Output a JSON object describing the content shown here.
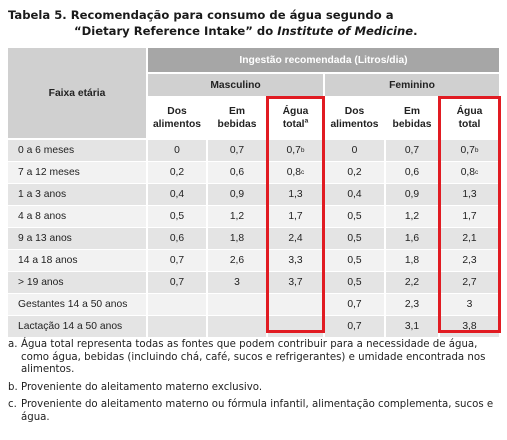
{
  "title": {
    "line1": "Tabela 5. Recomendação para consumo de água segundo a",
    "line2_pre": "“Dietary Reference Intake” do ",
    "line2_em": "Institute of Medicine",
    "line2_post": "."
  },
  "table": {
    "age_header": "Faixa etária",
    "intake_header": "Ingestão recomendada (Litros/dia)",
    "male_header": "Masculino",
    "female_header": "Feminino",
    "col_headers": {
      "food_l1": "Dos",
      "food_l2": "alimentos",
      "drink_l1": "Em",
      "drink_l2": "bebidas",
      "total_l1": "Água",
      "total_l2": "total",
      "total_male_sup": "a"
    },
    "rows": [
      {
        "label": "0 a 6 meses",
        "m_food": "0",
        "m_drink": "0,7",
        "m_total": "0,7",
        "m_sup": "b",
        "f_food": "0",
        "f_drink": "0,7",
        "f_total": "0,7",
        "f_sup": "b"
      },
      {
        "label": "7 a 12 meses",
        "m_food": "0,2",
        "m_drink": "0,6",
        "m_total": "0,8",
        "m_sup": "c",
        "f_food": "0,2",
        "f_drink": "0,6",
        "f_total": "0,8",
        "f_sup": "c"
      },
      {
        "label": "1 a 3 anos",
        "m_food": "0,4",
        "m_drink": "0,9",
        "m_total": "1,3",
        "m_sup": "",
        "f_food": "0,4",
        "f_drink": "0,9",
        "f_total": "1,3",
        "f_sup": ""
      },
      {
        "label": "4 a 8 anos",
        "m_food": "0,5",
        "m_drink": "1,2",
        "m_total": "1,7",
        "m_sup": "",
        "f_food": "0,5",
        "f_drink": "1,2",
        "f_total": "1,7",
        "f_sup": ""
      },
      {
        "label": "9 a 13 anos",
        "m_food": "0,6",
        "m_drink": "1,8",
        "m_total": "2,4",
        "m_sup": "",
        "f_food": "0,5",
        "f_drink": "1,6",
        "f_total": "2,1",
        "f_sup": ""
      },
      {
        "label": "14 a 18 anos",
        "m_food": "0,7",
        "m_drink": "2,6",
        "m_total": "3,3",
        "m_sup": "",
        "f_food": "0,5",
        "f_drink": "1,8",
        "f_total": "2,3",
        "f_sup": ""
      },
      {
        "label": "> 19 anos",
        "m_food": "0,7",
        "m_drink": "3",
        "m_total": "3,7",
        "m_sup": "",
        "f_food": "0,5",
        "f_drink": "2,2",
        "f_total": "2,7",
        "f_sup": ""
      },
      {
        "label": "Gestantes 14 a 50 anos",
        "m_food": "",
        "m_drink": "",
        "m_total": "",
        "m_sup": "",
        "f_food": "0,7",
        "f_drink": "2,3",
        "f_total": "3",
        "f_sup": ""
      },
      {
        "label": "Lactação 14 a 50 anos",
        "m_food": "",
        "m_drink": "",
        "m_total": "",
        "m_sup": "",
        "f_food": "0,7",
        "f_drink": "3,1",
        "f_total": "3,8",
        "f_sup": ""
      }
    ],
    "highlight_color": "#e11b22"
  },
  "notes": [
    {
      "key": "a.",
      "text": "Água total representa todas as fontes que podem contribuir para a necessidade de água, como água, bebidas (incluindo chá, café, sucos e refrigerantes) e umidade encontrada nos alimentos."
    },
    {
      "key": "b.",
      "text": "Proveniente do aleitamento materno exclusivo."
    },
    {
      "key": "c.",
      "text": "Proveniente do aleitamento materno ou fórmula infantil, alimentação complementa, sucos e água."
    }
  ]
}
